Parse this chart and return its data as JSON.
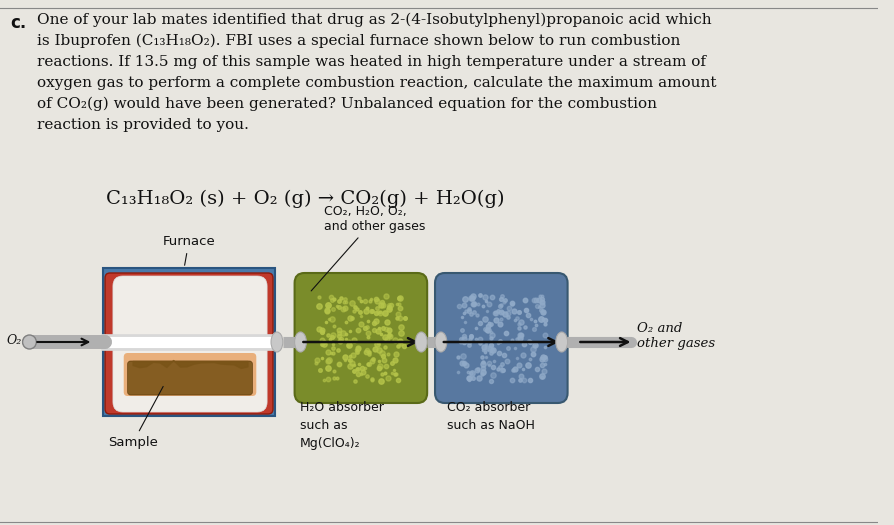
{
  "bg_color": "#e8e6e0",
  "text_color": "#111111",
  "label_c": "c.",
  "lines": [
    "One of your lab mates identified that drug as 2-(4-Isobutylphenyl)propanoic acid which",
    "is Ibuprofen (C₁₃H₁₈O₂). FBI uses a special furnace shown below to run combustion",
    "reactions. If 13.5 mg of this sample was heated in high temperature under a stream of",
    "oxygen gas to perform a complete combustion reaction, calculate the maximum amount",
    "of CO₂(g) would have been generated? Unbalanced equation for the combustion",
    "reaction is provided to you."
  ],
  "equation": "C₁₃H₁₈O₂ (s) + O₂ (g) → CO₂(g) + H₂O(g)",
  "furnace_label": "Furnace",
  "sample_label": "Sample",
  "co2_gases_label": "CO₂, H₂O, O₂,\nand other gases",
  "h2o_absorber_label": "H₂O absorber\nsuch as\nMg(ClO₄)₂",
  "co2_absorber_label": "CO₂ absorber\nsuch as NaOH",
  "o2_left_label": "O₂",
  "o2_right_label": "O₂ and\nother gases",
  "furnace_blue": "#4a7aaa",
  "furnace_red": "#c0392b",
  "furnace_white": "#f0ede8",
  "furnace_dark_blue": "#2a5580",
  "sample_brown": "#7a5418",
  "h2o_abs_color": "#7a8c2a",
  "h2o_dot_color": "#b5c44a",
  "co2_abs_color": "#5878a0",
  "co2_dot_color": "#90aac8",
  "pipe_color": "#b0b0b0",
  "connector_color": "#c8c8c8",
  "arrow_color": "#111111"
}
